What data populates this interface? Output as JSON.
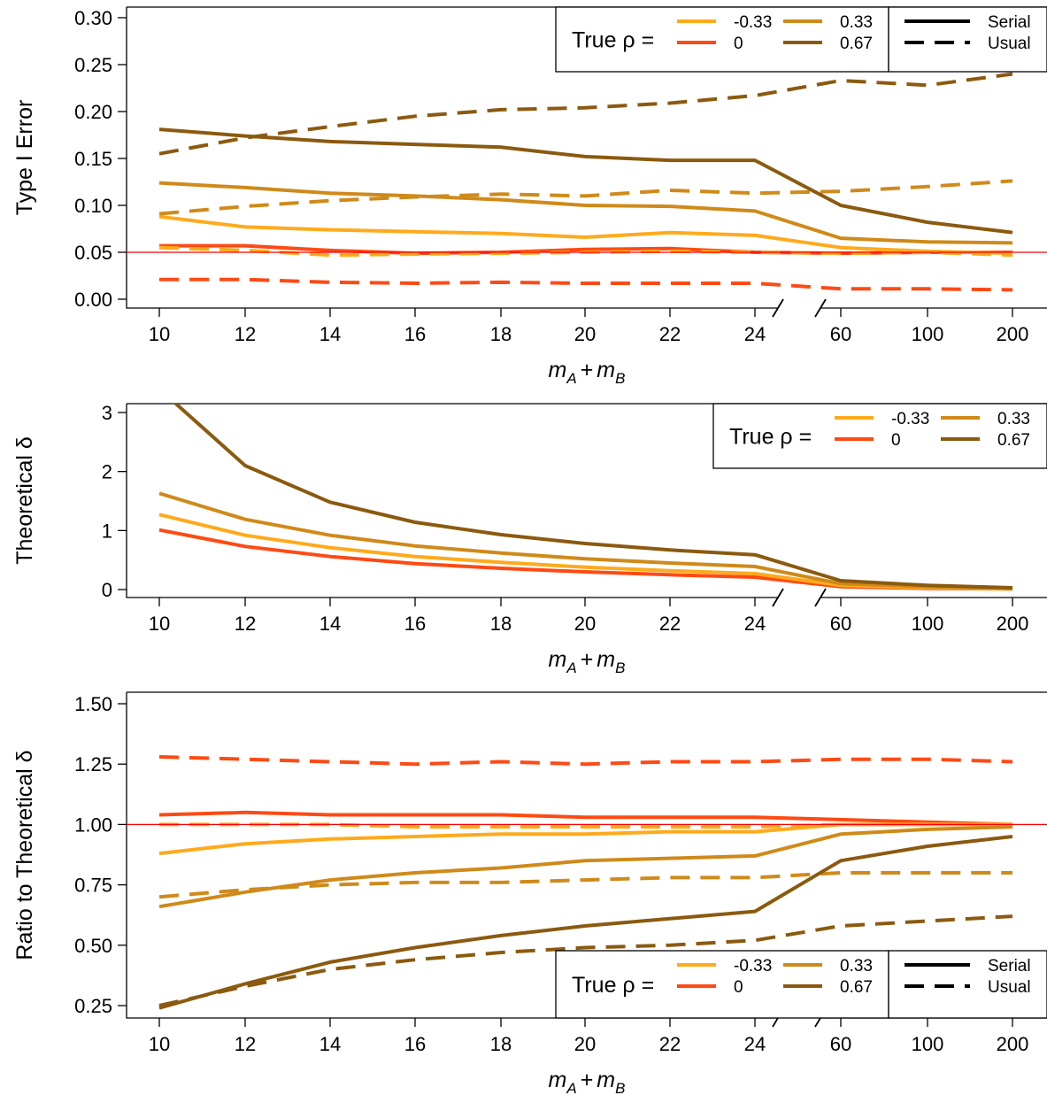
{
  "colors": {
    "rho_neg033": "#ff4a14",
    "rho_0": "#ffaa1c",
    "rho_033": "#cf8a1a",
    "rho_067": "#8b5a0f",
    "reference_line": "#ff0000"
  },
  "legend": {
    "title": "True ρ =",
    "rho_labels": [
      "-0.33",
      "0",
      "0.33",
      "0.67"
    ],
    "linetype_labels": [
      "Serial",
      "Usual"
    ]
  },
  "chart_data": [
    {
      "type": "line",
      "ylabel": "Type I Error",
      "xlabel_base": "m",
      "xlabel_sub": [
        "A",
        "B"
      ],
      "xlabel_op": "+",
      "categories": [
        "10",
        "12",
        "14",
        "16",
        "18",
        "20",
        "22",
        "24",
        "60",
        "100",
        "200"
      ],
      "axis_break": "between 24 and 60",
      "ylim": [
        0,
        0.3
      ],
      "yticks": [
        "0.00",
        "0.05",
        "0.10",
        "0.15",
        "0.20",
        "0.25",
        "0.30"
      ],
      "reference_line": 0.05,
      "legend_position": "top-right",
      "series": [
        {
          "name": "-0.33",
          "linetype": "Serial",
          "values": [
            0.057,
            0.057,
            0.052,
            0.049,
            0.05,
            0.053,
            0.054,
            0.05,
            0.049,
            0.05,
            0.05
          ]
        },
        {
          "name": "-0.33",
          "linetype": "Usual",
          "values": [
            0.021,
            0.021,
            0.018,
            0.017,
            0.018,
            0.017,
            0.017,
            0.017,
            0.011,
            0.011,
            0.01
          ]
        },
        {
          "name": "0",
          "linetype": "Serial",
          "values": [
            0.088,
            0.077,
            0.074,
            0.072,
            0.07,
            0.066,
            0.071,
            0.068,
            0.055,
            0.051,
            0.049
          ]
        },
        {
          "name": "0",
          "linetype": "Usual",
          "values": [
            0.055,
            0.052,
            0.047,
            0.048,
            0.049,
            0.05,
            0.051,
            0.05,
            0.049,
            0.05,
            0.047
          ]
        },
        {
          "name": "0.33",
          "linetype": "Serial",
          "values": [
            0.124,
            0.119,
            0.113,
            0.11,
            0.106,
            0.1,
            0.099,
            0.094,
            0.065,
            0.061,
            0.06
          ]
        },
        {
          "name": "0.33",
          "linetype": "Usual",
          "values": [
            0.091,
            0.099,
            0.105,
            0.109,
            0.112,
            0.11,
            0.116,
            0.113,
            0.115,
            0.12,
            0.126
          ]
        },
        {
          "name": "0.67",
          "linetype": "Serial",
          "values": [
            0.181,
            0.174,
            0.168,
            0.165,
            0.162,
            0.152,
            0.148,
            0.148,
            0.1,
            0.082,
            0.071
          ]
        },
        {
          "name": "0.67",
          "linetype": "Usual",
          "values": [
            0.155,
            0.172,
            0.184,
            0.195,
            0.202,
            0.204,
            0.209,
            0.217,
            0.233,
            0.228,
            0.24
          ]
        }
      ]
    },
    {
      "type": "line",
      "ylabel": "Theoretical δ",
      "xlabel_base": "m",
      "xlabel_sub": [
        "A",
        "B"
      ],
      "xlabel_op": "+",
      "categories": [
        "10",
        "12",
        "14",
        "16",
        "18",
        "20",
        "22",
        "24",
        "60",
        "100",
        "200"
      ],
      "axis_break": "between 24 and 60",
      "ylim": [
        -0.1,
        3.1
      ],
      "yticks": [
        "0",
        "1",
        "2",
        "3"
      ],
      "legend_position": "top-right",
      "series": [
        {
          "name": "-0.33",
          "values": [
            1.01,
            0.73,
            0.56,
            0.44,
            0.36,
            0.3,
            0.25,
            0.21,
            0.05,
            0.02,
            0.01
          ]
        },
        {
          "name": "0",
          "values": [
            1.27,
            0.92,
            0.71,
            0.56,
            0.46,
            0.38,
            0.32,
            0.27,
            0.07,
            0.03,
            0.01
          ]
        },
        {
          "name": "0.33",
          "values": [
            1.63,
            1.19,
            0.92,
            0.74,
            0.62,
            0.52,
            0.45,
            0.39,
            0.1,
            0.05,
            0.02
          ]
        },
        {
          "name": "0.67",
          "values": [
            3.4,
            2.1,
            1.48,
            1.14,
            0.93,
            0.78,
            0.67,
            0.59,
            0.15,
            0.07,
            0.03
          ]
        }
      ]
    },
    {
      "type": "line",
      "ylabel": "Ratio to Theoretical δ",
      "xlabel_base": "m",
      "xlabel_sub": [
        "A",
        "B"
      ],
      "xlabel_op": "+",
      "categories": [
        "10",
        "12",
        "14",
        "16",
        "18",
        "20",
        "22",
        "24",
        "60",
        "100",
        "200"
      ],
      "axis_break": "between 24 and 60",
      "ylim": [
        0.2,
        1.55
      ],
      "yticks": [
        "0.25",
        "0.50",
        "0.75",
        "1.00",
        "1.25",
        "1.50"
      ],
      "reference_line": 1.0,
      "legend_position": "bottom-right",
      "series": [
        {
          "name": "-0.33",
          "linetype": "Serial",
          "values": [
            1.04,
            1.05,
            1.04,
            1.04,
            1.04,
            1.03,
            1.03,
            1.03,
            1.02,
            1.01,
            1.0
          ]
        },
        {
          "name": "-0.33",
          "linetype": "Usual",
          "values": [
            1.28,
            1.27,
            1.26,
            1.25,
            1.26,
            1.25,
            1.26,
            1.26,
            1.27,
            1.27,
            1.26
          ]
        },
        {
          "name": "0",
          "linetype": "Serial",
          "values": [
            0.88,
            0.92,
            0.94,
            0.95,
            0.96,
            0.96,
            0.97,
            0.97,
            1.0,
            1.0,
            1.0
          ]
        },
        {
          "name": "0",
          "linetype": "Usual",
          "values": [
            1.0,
            1.0,
            1.0,
            0.99,
            0.99,
            0.99,
            0.99,
            0.99,
            1.0,
            1.0,
            1.0
          ]
        },
        {
          "name": "0.33",
          "linetype": "Serial",
          "values": [
            0.66,
            0.72,
            0.77,
            0.8,
            0.82,
            0.85,
            0.86,
            0.87,
            0.96,
            0.98,
            0.99
          ]
        },
        {
          "name": "0.33",
          "linetype": "Usual",
          "values": [
            0.7,
            0.73,
            0.75,
            0.76,
            0.76,
            0.77,
            0.78,
            0.78,
            0.8,
            0.8,
            0.8
          ]
        },
        {
          "name": "0.67",
          "linetype": "Serial",
          "values": [
            0.24,
            0.34,
            0.43,
            0.49,
            0.54,
            0.58,
            0.61,
            0.64,
            0.85,
            0.91,
            0.95
          ]
        },
        {
          "name": "0.67",
          "linetype": "Usual",
          "values": [
            0.25,
            0.33,
            0.4,
            0.44,
            0.47,
            0.49,
            0.5,
            0.52,
            0.58,
            0.6,
            0.62
          ]
        }
      ]
    }
  ]
}
